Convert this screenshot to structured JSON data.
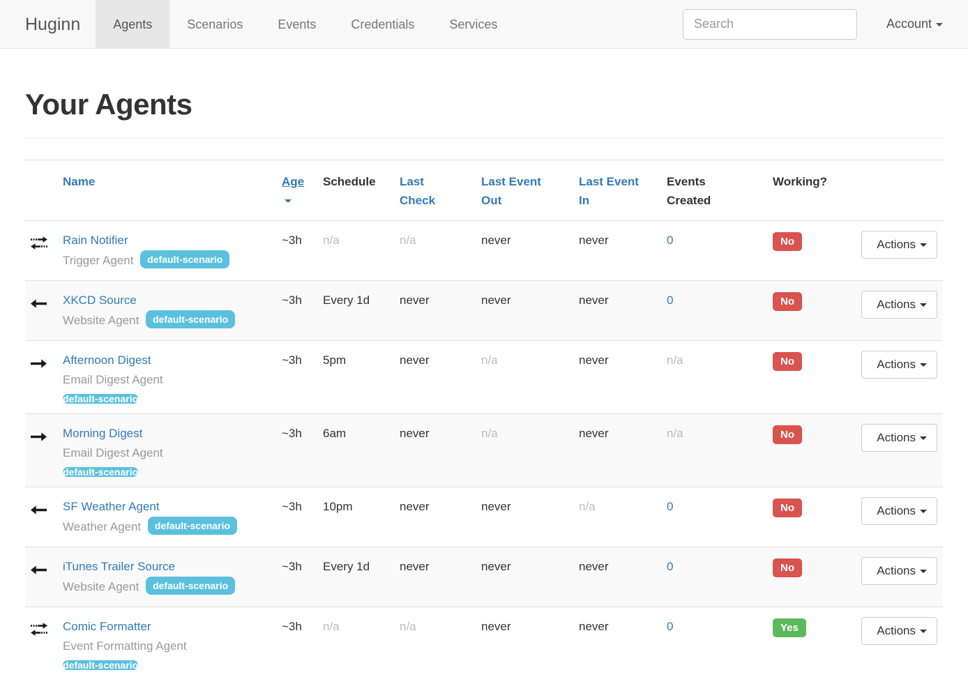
{
  "navbar": {
    "brand": "Huginn",
    "items": [
      {
        "label": "Agents",
        "active": true
      },
      {
        "label": "Scenarios",
        "active": false
      },
      {
        "label": "Events",
        "active": false
      },
      {
        "label": "Credentials",
        "active": false
      },
      {
        "label": "Services",
        "active": false
      }
    ],
    "search_placeholder": "Search",
    "account_label": "Account"
  },
  "page": {
    "title": "Your Agents"
  },
  "colors": {
    "link": "#337ab7",
    "scenario_badge": "#5bc0de",
    "status_yes": "#5cb85c",
    "status_no": "#d9534f",
    "navbar_bg": "#f8f8f8"
  },
  "table": {
    "headers": [
      {
        "label": "Name",
        "link": true
      },
      {
        "label": "Age",
        "link": true,
        "sorted": "desc"
      },
      {
        "label": "Schedule",
        "link": false
      },
      {
        "label": "Last Check",
        "link": true
      },
      {
        "label": "Last Event Out",
        "link": true
      },
      {
        "label": "Last Event In",
        "link": true
      },
      {
        "label": "Events Created",
        "link": false
      },
      {
        "label": "Working?",
        "link": false
      }
    ],
    "actions_label": "Actions",
    "rows": [
      {
        "icon": "exchange-icon",
        "name": "Rain Notifier",
        "type": "Trigger Agent",
        "badge": "default-scenario",
        "badge_block": false,
        "age": "~3h",
        "schedule": "n/a",
        "last_check": "n/a",
        "last_event_out": "never",
        "last_event_in": "never",
        "events_created": "0",
        "working": "No"
      },
      {
        "icon": "arrow-left-icon",
        "name": "XKCD Source",
        "type": "Website Agent",
        "badge": "default-scenario",
        "badge_block": false,
        "age": "~3h",
        "schedule": "Every 1d",
        "last_check": "never",
        "last_event_out": "never",
        "last_event_in": "never",
        "events_created": "0",
        "working": "No"
      },
      {
        "icon": "arrow-right-icon",
        "name": "Afternoon Digest",
        "type": "Email Digest Agent",
        "badge": "default-scenario",
        "badge_block": true,
        "age": "~3h",
        "schedule": "5pm",
        "last_check": "never",
        "last_event_out": "n/a",
        "last_event_in": "never",
        "events_created": "n/a",
        "working": "No"
      },
      {
        "icon": "arrow-right-icon",
        "name": "Morning Digest",
        "type": "Email Digest Agent",
        "badge": "default-scenario",
        "badge_block": true,
        "age": "~3h",
        "schedule": "6am",
        "last_check": "never",
        "last_event_out": "n/a",
        "last_event_in": "never",
        "events_created": "n/a",
        "working": "No"
      },
      {
        "icon": "arrow-left-icon",
        "name": "SF Weather Agent",
        "type": "Weather Agent",
        "badge": "default-scenario",
        "badge_block": false,
        "age": "~3h",
        "schedule": "10pm",
        "last_check": "never",
        "last_event_out": "never",
        "last_event_in": "n/a",
        "events_created": "0",
        "working": "No"
      },
      {
        "icon": "arrow-left-icon",
        "name": "iTunes Trailer Source",
        "type": "Website Agent",
        "badge": "default-scenario",
        "badge_block": false,
        "age": "~3h",
        "schedule": "Every 1d",
        "last_check": "never",
        "last_event_out": "never",
        "last_event_in": "never",
        "events_created": "0",
        "working": "No"
      },
      {
        "icon": "exchange-icon",
        "name": "Comic Formatter",
        "type": "Event Formatting Agent",
        "badge": "default-scenario",
        "badge_block": true,
        "age": "~3h",
        "schedule": "n/a",
        "last_check": "n/a",
        "last_event_out": "never",
        "last_event_in": "never",
        "events_created": "0",
        "working": "Yes"
      }
    ]
  }
}
